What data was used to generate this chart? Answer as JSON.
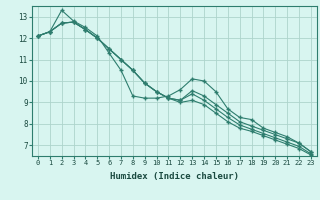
{
  "title": "",
  "xlabel": "Humidex (Indice chaleur)",
  "background_color": "#d8f5f0",
  "grid_color": "#aed4cc",
  "line_color": "#2e7d6e",
  "xlim": [
    -0.5,
    23.5
  ],
  "ylim": [
    6.5,
    13.5
  ],
  "yticks": [
    7,
    8,
    9,
    10,
    11,
    12,
    13
  ],
  "xticks": [
    0,
    1,
    2,
    3,
    4,
    5,
    6,
    7,
    8,
    9,
    10,
    11,
    12,
    13,
    14,
    15,
    16,
    17,
    18,
    19,
    20,
    21,
    22,
    23
  ],
  "series1": [
    12.1,
    12.3,
    13.3,
    12.8,
    12.5,
    12.1,
    11.3,
    10.5,
    9.3,
    9.2,
    9.2,
    9.3,
    9.6,
    10.1,
    10.0,
    9.5,
    8.7,
    8.3,
    8.2,
    7.8,
    7.6,
    7.4,
    7.1,
    6.7
  ],
  "series2": [
    12.1,
    12.3,
    12.7,
    12.75,
    12.4,
    12.0,
    11.5,
    11.0,
    10.5,
    9.9,
    9.5,
    9.2,
    9.1,
    9.55,
    9.3,
    8.9,
    8.5,
    8.1,
    7.9,
    7.7,
    7.5,
    7.3,
    7.1,
    6.7
  ],
  "series3": [
    12.1,
    12.3,
    12.7,
    12.75,
    12.4,
    12.0,
    11.5,
    11.0,
    10.5,
    9.9,
    9.5,
    9.2,
    9.1,
    9.4,
    9.1,
    8.7,
    8.3,
    7.95,
    7.75,
    7.55,
    7.35,
    7.15,
    6.95,
    6.6
  ],
  "series4": [
    12.1,
    12.3,
    12.7,
    12.75,
    12.4,
    12.0,
    11.5,
    11.0,
    10.5,
    9.9,
    9.5,
    9.2,
    9.0,
    9.1,
    8.9,
    8.5,
    8.1,
    7.8,
    7.65,
    7.45,
    7.25,
    7.05,
    6.85,
    6.55
  ]
}
